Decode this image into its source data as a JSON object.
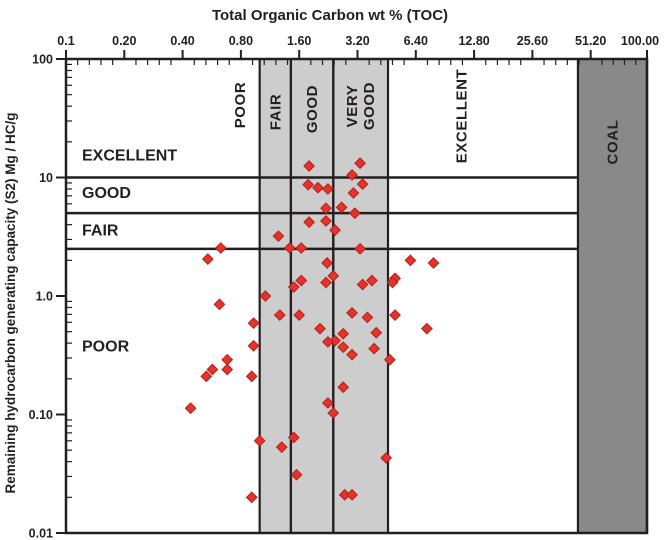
{
  "figure": {
    "background": "#ffffff",
    "line_color": "#231f20",
    "band_fill": "#cdcdcd",
    "coal_fill": "#898989",
    "point_fill": "#e5332a",
    "point_stroke": "#b5201c"
  },
  "chart_data": {
    "type": "scatter",
    "xlabel": "Total Organic Carbon wt % (TOC)",
    "ylabel": "Remaining hydrocarbon generating capacity (S2) Mg / HC/g",
    "x_scale": "log",
    "y_scale": "log",
    "x_range": [
      0.1,
      100
    ],
    "y_range": [
      0.01,
      100
    ],
    "x_ticks": [
      [
        "0.1",
        0.1
      ],
      [
        "0.20",
        0.2
      ],
      [
        "0.40",
        0.4
      ],
      [
        "0.80",
        0.8
      ],
      [
        "1.60",
        1.6
      ],
      [
        "3.20",
        3.2
      ],
      [
        "6.40",
        6.4
      ],
      [
        "12.80",
        12.8
      ],
      [
        "25.60",
        25.6
      ],
      [
        "51.20",
        51.2
      ],
      [
        "100.00",
        100
      ]
    ],
    "y_ticks": [
      [
        "100",
        100
      ],
      [
        "10",
        10
      ],
      [
        "1.0",
        1.0
      ],
      [
        "0.10",
        0.1
      ],
      [
        "0.01",
        0.01
      ]
    ],
    "s2_zone_lines": [
      10,
      5,
      2.5
    ],
    "s2_zone_labels": [
      {
        "label": "EXCELLENT",
        "y": 15.5
      },
      {
        "label": "GOOD",
        "y": 7.5
      },
      {
        "label": "FAIR",
        "y": 3.6
      },
      {
        "label": "POOR",
        "y": 0.38
      }
    ],
    "toc_bands": [
      {
        "label": "POOR",
        "from": 0.1,
        "to": 1.0,
        "fill": "none",
        "label_x": 0.79,
        "label_cy": 105
      },
      {
        "label": "FAIR",
        "from": 1.0,
        "to": 1.45,
        "fill": "light",
        "label_x": 1.2,
        "label_cy": 112
      },
      {
        "label": "GOOD",
        "from": 1.45,
        "to": 2.4,
        "fill": "light",
        "label_x": 1.86,
        "label_cy": 109
      },
      {
        "label": "VERY GOOD",
        "label_lines": [
          "VERY",
          "GOOD"
        ],
        "from": 2.4,
        "to": 4.6,
        "fill": "light",
        "label_x": 3.3,
        "label_cy": 106
      },
      {
        "label": "EXCELLENT",
        "from": 4.6,
        "to": 44,
        "fill": "none",
        "label_x": 11,
        "label_cy": 116
      },
      {
        "label": "COAL",
        "from": 44,
        "to": 100,
        "fill": "dark",
        "label_x": 66,
        "label_cy": 142
      }
    ],
    "points": [
      [
        1.8,
        12.5
      ],
      [
        3.3,
        13.2
      ],
      [
        3.0,
        10.5
      ],
      [
        1.78,
        8.7
      ],
      [
        2.0,
        8.2
      ],
      [
        2.25,
        8.0
      ],
      [
        3.4,
        8.8
      ],
      [
        3.05,
        7.4
      ],
      [
        2.2,
        5.5
      ],
      [
        2.65,
        5.6
      ],
      [
        3.1,
        5.0
      ],
      [
        1.8,
        4.2
      ],
      [
        2.2,
        4.3
      ],
      [
        2.45,
        3.6
      ],
      [
        1.25,
        3.2
      ],
      [
        1.43,
        2.54
      ],
      [
        1.64,
        2.54
      ],
      [
        0.63,
        2.54
      ],
      [
        0.54,
        2.05
      ],
      [
        3.3,
        2.5
      ],
      [
        6.0,
        2.0
      ],
      [
        7.9,
        1.9
      ],
      [
        2.23,
        1.9
      ],
      [
        2.4,
        1.48
      ],
      [
        2.2,
        1.3
      ],
      [
        1.5,
        1.19
      ],
      [
        1.64,
        1.35
      ],
      [
        3.4,
        1.25
      ],
      [
        3.8,
        1.35
      ],
      [
        5.0,
        1.41
      ],
      [
        4.85,
        1.3
      ],
      [
        1.07,
        1.0
      ],
      [
        0.62,
        0.85
      ],
      [
        1.27,
        0.69
      ],
      [
        1.6,
        0.69
      ],
      [
        3.0,
        0.72
      ],
      [
        3.6,
        0.66
      ],
      [
        5.0,
        0.69
      ],
      [
        2.05,
        0.53
      ],
      [
        0.93,
        0.59
      ],
      [
        2.7,
        0.48
      ],
      [
        2.45,
        0.42
      ],
      [
        2.25,
        0.41
      ],
      [
        4.0,
        0.49
      ],
      [
        7.3,
        0.53
      ],
      [
        2.7,
        0.37
      ],
      [
        0.93,
        0.38
      ],
      [
        3.0,
        0.32
      ],
      [
        3.9,
        0.36
      ],
      [
        4.7,
        0.29
      ],
      [
        0.68,
        0.29
      ],
      [
        0.57,
        0.24
      ],
      [
        0.68,
        0.24
      ],
      [
        0.53,
        0.21
      ],
      [
        0.91,
        0.21
      ],
      [
        2.7,
        0.17
      ],
      [
        2.25,
        0.125
      ],
      [
        2.4,
        0.103
      ],
      [
        0.44,
        0.113
      ],
      [
        1.0,
        0.06
      ],
      [
        1.3,
        0.053
      ],
      [
        1.5,
        0.064
      ],
      [
        1.55,
        0.031
      ],
      [
        0.91,
        0.02
      ],
      [
        4.5,
        0.043
      ],
      [
        2.75,
        0.021
      ],
      [
        3.0,
        0.021
      ]
    ]
  }
}
